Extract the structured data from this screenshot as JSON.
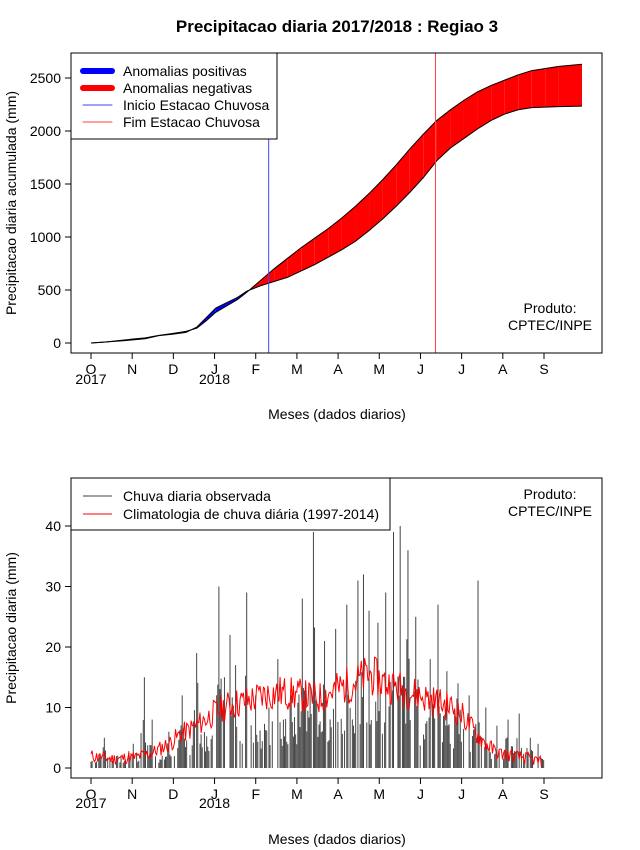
{
  "title": "Precipitacao diaria 2017/2018 : Regiao 3",
  "chart_data": [
    {
      "type": "area",
      "ylabel": "Precipitacao diaria acumulada (mm)",
      "xlabel": "Meses (dados diarios)",
      "ylim": [
        0,
        2750
      ],
      "yticks": [
        0,
        500,
        1000,
        1500,
        2000,
        2500
      ],
      "month_ticks": [
        "O",
        "N",
        "D",
        "J",
        "F",
        "M",
        "A",
        "M",
        "J",
        "J",
        "A",
        "S"
      ],
      "year_labels": [
        "2017",
        "2018"
      ],
      "x_units": "days since 1 Oct 2017",
      "legend": [
        "Anomalias positivas",
        "Anomalias negativas",
        "Inicio Estacao Chuvosa",
        "Fim Estacao Chuvosa"
      ],
      "producer": [
        "Produto:",
        "CPTEC/INPE"
      ],
      "colors": {
        "positive": "#0000ff",
        "negative": "#ff0000",
        "onset": "#4444ff",
        "end": "#ff4444"
      },
      "onset_day": 131,
      "end_day": 254,
      "series": [
        {
          "name": "observado",
          "points": [
            [
              0,
              0
            ],
            [
              10,
              10
            ],
            [
              20,
              18
            ],
            [
              30,
              28
            ],
            [
              40,
              40
            ],
            [
              50,
              70
            ],
            [
              60,
              82
            ],
            [
              70,
              100
            ],
            [
              78,
              150
            ],
            [
              85,
              240
            ],
            [
              92,
              330
            ],
            [
              100,
              380
            ],
            [
              108,
              430
            ],
            [
              115,
              490
            ],
            [
              125,
              540
            ],
            [
              135,
              580
            ],
            [
              145,
              620
            ],
            [
              155,
              680
            ],
            [
              165,
              740
            ],
            [
              175,
              810
            ],
            [
              185,
              880
            ],
            [
              195,
              960
            ],
            [
              205,
              1060
            ],
            [
              215,
              1170
            ],
            [
              225,
              1290
            ],
            [
              235,
              1420
            ],
            [
              245,
              1560
            ],
            [
              255,
              1720
            ],
            [
              265,
              1840
            ],
            [
              275,
              1930
            ],
            [
              285,
              2020
            ],
            [
              295,
              2100
            ],
            [
              305,
              2160
            ],
            [
              315,
              2200
            ],
            [
              325,
              2220
            ],
            [
              335,
              2225
            ],
            [
              345,
              2230
            ],
            [
              362,
              2235
            ]
          ]
        },
        {
          "name": "climatologia",
          "points": [
            [
              0,
              0
            ],
            [
              10,
              8
            ],
            [
              20,
              22
            ],
            [
              30,
              36
            ],
            [
              40,
              48
            ],
            [
              50,
              72
            ],
            [
              60,
              90
            ],
            [
              70,
              110
            ],
            [
              78,
              140
            ],
            [
              85,
              210
            ],
            [
              92,
              290
            ],
            [
              100,
              350
            ],
            [
              108,
              410
            ],
            [
              115,
              480
            ],
            [
              125,
              590
            ],
            [
              135,
              700
            ],
            [
              145,
              800
            ],
            [
              155,
              900
            ],
            [
              165,
              990
            ],
            [
              175,
              1080
            ],
            [
              185,
              1180
            ],
            [
              195,
              1290
            ],
            [
              205,
              1410
            ],
            [
              215,
              1540
            ],
            [
              225,
              1680
            ],
            [
              235,
              1830
            ],
            [
              245,
              1970
            ],
            [
              255,
              2100
            ],
            [
              265,
              2200
            ],
            [
              275,
              2290
            ],
            [
              285,
              2370
            ],
            [
              295,
              2430
            ],
            [
              305,
              2480
            ],
            [
              315,
              2530
            ],
            [
              325,
              2570
            ],
            [
              335,
              2590
            ],
            [
              345,
              2610
            ],
            [
              362,
              2630
            ]
          ]
        }
      ]
    },
    {
      "type": "bar",
      "ylabel": "Precipitacao diaria (mm)",
      "xlabel": "Meses (dados diarios)",
      "ylim": [
        0,
        47
      ],
      "yticks": [
        0,
        10,
        20,
        30,
        40
      ],
      "month_ticks": [
        "O",
        "N",
        "D",
        "J",
        "F",
        "M",
        "A",
        "M",
        "J",
        "J",
        "A",
        "S"
      ],
      "year_labels": [
        "2017",
        "2018"
      ],
      "legend": [
        "Chuva diaria observada",
        "Climatologia de chuva diária (1997-2014)"
      ],
      "producer": [
        "Produto:",
        "CPTEC/INPE"
      ],
      "colors": {
        "observed": "#444444",
        "climatology": "#ff0000"
      },
      "observed_peaks": [
        [
          12,
          5
        ],
        [
          38,
          4
        ],
        [
          48,
          15
        ],
        [
          55,
          8
        ],
        [
          70,
          6
        ],
        [
          82,
          12
        ],
        [
          95,
          19
        ],
        [
          115,
          30
        ],
        [
          120,
          15
        ],
        [
          125,
          22
        ],
        [
          130,
          17
        ],
        [
          140,
          29
        ],
        [
          148,
          12
        ],
        [
          160,
          10
        ],
        [
          168,
          18
        ],
        [
          173,
          8
        ],
        [
          180,
          12
        ],
        [
          190,
          28
        ],
        [
          200,
          39
        ],
        [
          210,
          21
        ],
        [
          220,
          23
        ],
        [
          230,
          27
        ],
        [
          240,
          31
        ],
        [
          245,
          32
        ],
        [
          250,
          26
        ],
        [
          258,
          24
        ],
        [
          265,
          29
        ],
        [
          272,
          39
        ],
        [
          278,
          40
        ],
        [
          285,
          36
        ],
        [
          292,
          25
        ],
        [
          305,
          18
        ],
        [
          312,
          27
        ],
        [
          320,
          16
        ],
        [
          330,
          14
        ],
        [
          340,
          12
        ],
        [
          348,
          31
        ],
        [
          355,
          10
        ],
        [
          365,
          7
        ],
        [
          375,
          8
        ],
        [
          385,
          9
        ],
        [
          395,
          5
        ],
        [
          402,
          4
        ]
      ],
      "climatology_points": [
        [
          0,
          2
        ],
        [
          20,
          1.5
        ],
        [
          40,
          1.8
        ],
        [
          55,
          2.5
        ],
        [
          70,
          4
        ],
        [
          80,
          5.5
        ],
        [
          95,
          7
        ],
        [
          110,
          9
        ],
        [
          125,
          10.5
        ],
        [
          140,
          11
        ],
        [
          155,
          12
        ],
        [
          170,
          12.5
        ],
        [
          190,
          12
        ],
        [
          205,
          11.5
        ],
        [
          220,
          13
        ],
        [
          235,
          14
        ],
        [
          250,
          15.5
        ],
        [
          265,
          14
        ],
        [
          280,
          13
        ],
        [
          295,
          12
        ],
        [
          310,
          11
        ],
        [
          325,
          10
        ],
        [
          335,
          8.5
        ],
        [
          345,
          6
        ],
        [
          355,
          4
        ],
        [
          365,
          2.5
        ],
        [
          380,
          2
        ],
        [
          395,
          1.5
        ],
        [
          405,
          1
        ]
      ]
    }
  ]
}
